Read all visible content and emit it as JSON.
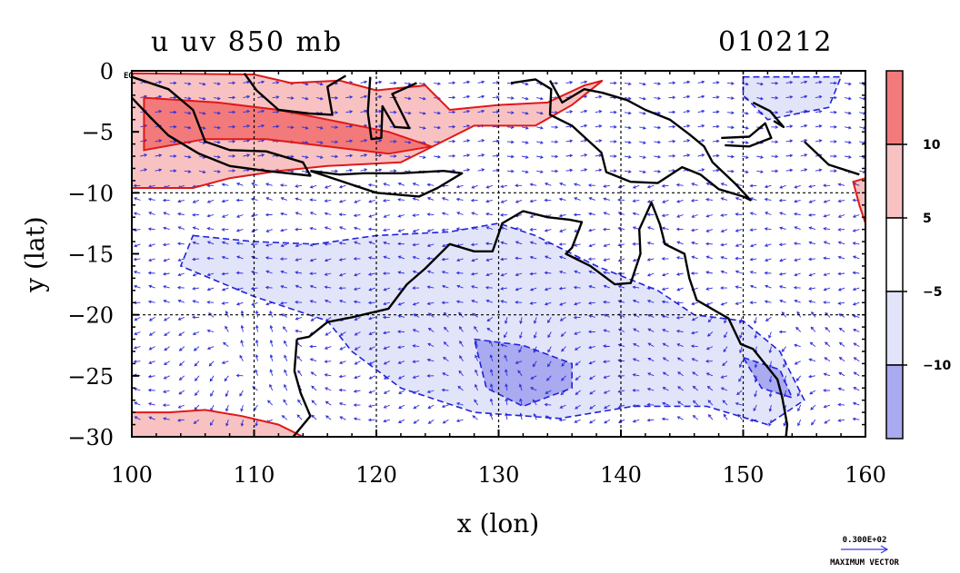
{
  "chart_data": {
    "type": "heatmap",
    "title_left": "u uv 850 mb",
    "title_right": "010212",
    "xlabel": "x (lon)",
    "ylabel": "y (lat)",
    "xlim": [
      100,
      160
    ],
    "ylim": [
      -30,
      0
    ],
    "x_ticks": [
      {
        "value": 100,
        "label": "100"
      },
      {
        "value": 110,
        "label": "110"
      },
      {
        "value": 120,
        "label": "120"
      },
      {
        "value": 130,
        "label": "130"
      },
      {
        "value": 140,
        "label": "140"
      },
      {
        "value": 150,
        "label": "150"
      },
      {
        "value": 160,
        "label": "160"
      }
    ],
    "y_ticks": [
      {
        "value": 0,
        "label": "0"
      },
      {
        "value": -5,
        "label": "−5"
      },
      {
        "value": -10,
        "label": "−10"
      },
      {
        "value": -15,
        "label": "−15"
      },
      {
        "value": -20,
        "label": "−20"
      },
      {
        "value": -25,
        "label": "−25"
      },
      {
        "value": -30,
        "label": "−30"
      }
    ],
    "y_tick_suffix": "EQ",
    "grid": true,
    "grid_lon": [
      110,
      120,
      130,
      140,
      150
    ],
    "grid_lat": [
      -10,
      -20
    ],
    "colorbar": {
      "position": "right",
      "bands": [
        {
          "color": "#f27a7a",
          "from": 10,
          "to": 15
        },
        {
          "color": "#f8c2c2",
          "from": 5,
          "to": 10
        },
        {
          "color": "#ffffff",
          "from": -5,
          "to": 5
        },
        {
          "color": "#e2e4fa",
          "from": -10,
          "to": -5
        },
        {
          "color": "#a9aaf0",
          "from": -15,
          "to": -10
        }
      ],
      "labels": [
        {
          "value": 10,
          "label": "10"
        },
        {
          "value": 5,
          "label": "5"
        },
        {
          "value": -5,
          "label": "−5"
        },
        {
          "value": -10,
          "label": "−10"
        }
      ]
    },
    "shaded_regions": [
      {
        "level": "positive_strong",
        "color": "#f8c2c2",
        "lonlat": [
          [
            100,
            -0.2
          ],
          [
            110,
            -0.3
          ],
          [
            113,
            -1
          ],
          [
            117,
            -0.8
          ],
          [
            120,
            -1.6
          ],
          [
            124,
            -1.2
          ],
          [
            126,
            -3.2
          ],
          [
            130,
            -2.8
          ],
          [
            134,
            -2.6
          ],
          [
            137,
            -1.2
          ],
          [
            138.5,
            -0.8
          ],
          [
            136,
            -2.8
          ],
          [
            133,
            -4.5
          ],
          [
            128,
            -4.5
          ],
          [
            125,
            -6
          ],
          [
            122,
            -7.5
          ],
          [
            116,
            -7.8
          ],
          [
            112,
            -8.2
          ],
          [
            108,
            -8.8
          ],
          [
            105,
            -9.6
          ],
          [
            100,
            -9.6
          ]
        ]
      },
      {
        "level": "positive_core",
        "color": "#f27a7a",
        "lonlat": [
          [
            101,
            -2.2
          ],
          [
            107,
            -2.6
          ],
          [
            112,
            -3.2
          ],
          [
            116,
            -4
          ],
          [
            121,
            -5
          ],
          [
            124.5,
            -6.2
          ],
          [
            121,
            -6.8
          ],
          [
            116,
            -6.2
          ],
          [
            111,
            -5.6
          ],
          [
            106,
            -5.6
          ],
          [
            101,
            -6.5
          ]
        ]
      },
      {
        "level": "positive_strong",
        "color": "#f8c2c2",
        "lonlat": [
          [
            100,
            -28
          ],
          [
            103,
            -28
          ],
          [
            106,
            -27.8
          ],
          [
            109,
            -28.3
          ],
          [
            112,
            -29
          ],
          [
            114,
            -30
          ],
          [
            100,
            -30
          ]
        ]
      },
      {
        "level": "positive_strong",
        "color": "#f8c2c2",
        "lonlat": [
          [
            159,
            -9.1
          ],
          [
            160,
            -8.8
          ],
          [
            160,
            -12.5
          ],
          [
            159.5,
            -11
          ]
        ]
      },
      {
        "level": "negative_weak",
        "color": "#e2e4fa",
        "lonlat": [
          [
            105,
            -13.5
          ],
          [
            110,
            -14
          ],
          [
            115,
            -14.2
          ],
          [
            120,
            -13.5
          ],
          [
            126,
            -13.2
          ],
          [
            130,
            -12.5
          ],
          [
            133,
            -13.5
          ],
          [
            138,
            -16
          ],
          [
            143,
            -18
          ],
          [
            146,
            -20
          ],
          [
            150,
            -20.5
          ],
          [
            153,
            -23
          ],
          [
            155,
            -27
          ],
          [
            152,
            -29
          ],
          [
            147,
            -27.5
          ],
          [
            141,
            -27.5
          ],
          [
            135,
            -28.5
          ],
          [
            128,
            -28
          ],
          [
            122,
            -26
          ],
          [
            118,
            -23
          ],
          [
            116,
            -20.5
          ],
          [
            110,
            -18.5
          ],
          [
            104,
            -16
          ]
        ]
      },
      {
        "level": "negative_weak",
        "color": "#e2e4fa",
        "lonlat": [
          [
            150,
            -0.5
          ],
          [
            158,
            -0.5
          ],
          [
            157,
            -3
          ],
          [
            152,
            -4
          ],
          [
            150,
            -2
          ]
        ]
      },
      {
        "level": "negative_strong",
        "color": "#a9aaf0",
        "lonlat": [
          [
            128,
            -22
          ],
          [
            132,
            -22.5
          ],
          [
            136,
            -24
          ],
          [
            136,
            -26
          ],
          [
            132,
            -27.5
          ],
          [
            129,
            -26
          ]
        ]
      },
      {
        "level": "negative_strong",
        "color": "#a9aaf0",
        "lonlat": [
          [
            150,
            -23.5
          ],
          [
            153,
            -24.5
          ],
          [
            154,
            -26.8
          ],
          [
            151.5,
            -26
          ]
        ]
      }
    ],
    "legend_vector": {
      "value_label": "0.300E+02",
      "caption": "MAXIMUM VECTOR"
    }
  }
}
